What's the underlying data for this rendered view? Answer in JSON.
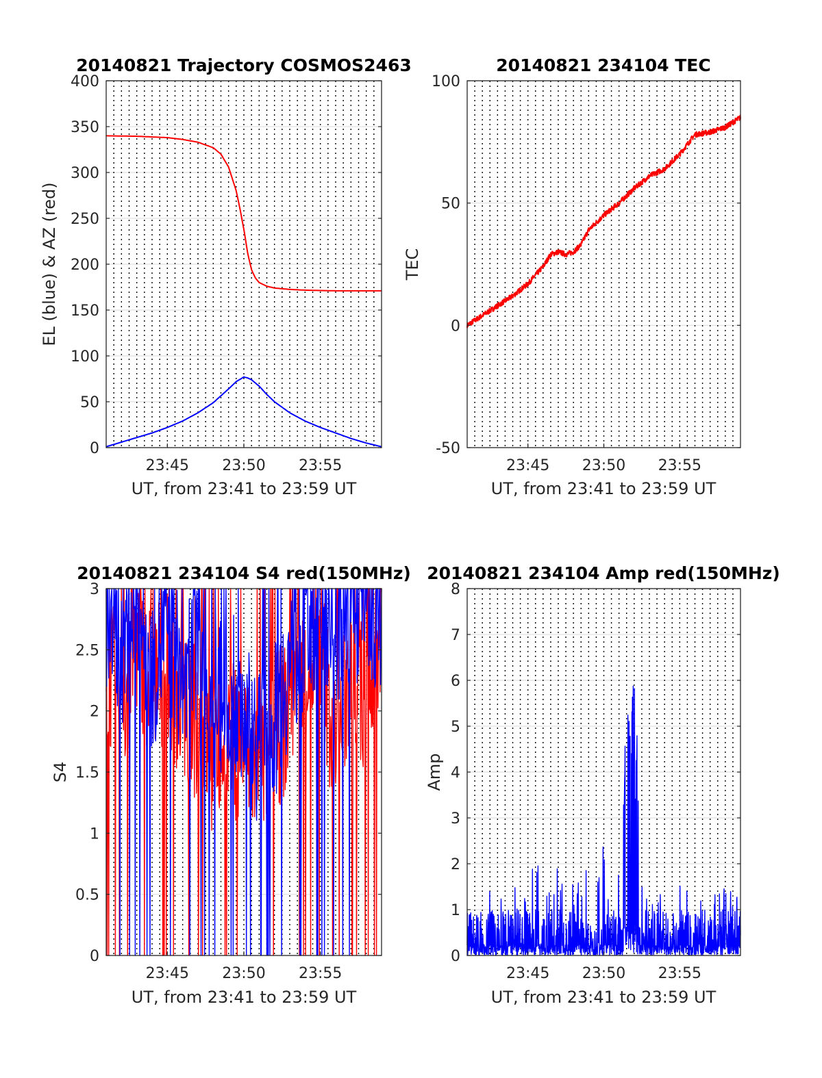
{
  "chart_data": [
    {
      "type": "line",
      "title": "20140821 Trajectory COSMOS2463",
      "xlabel": "UT, from 23:41 to 23:59 UT",
      "ylabel": "EL (blue) & AZ (red)",
      "xlim": [
        "23:41",
        "23:59"
      ],
      "xticks": [
        "23:45",
        "23:50",
        "23:55"
      ],
      "ylim": [
        0,
        400
      ],
      "yticks": [
        "0",
        "50",
        "100",
        "150",
        "200",
        "250",
        "300",
        "350",
        "400"
      ],
      "grid": "dotted vertical every 30 s, light horizontal at y ticks",
      "series": [
        {
          "name": "",
          "color": "#ff0000",
          "x": [
            "23:41",
            "23:43",
            "23:45",
            "23:46",
            "23:47",
            "23:48",
            "23:48:30",
            "23:49",
            "23:49:30",
            "23:49:45",
            "23:50",
            "23:50:15",
            "23:50:30",
            "23:50:45",
            "23:51",
            "23:51:30",
            "23:52",
            "23:53",
            "23:54",
            "23:55",
            "23:56",
            "23:57",
            "23:59"
          ],
          "values": [
            340,
            339.5,
            338,
            336,
            333,
            327,
            320,
            306,
            280,
            260,
            238,
            212,
            194,
            185,
            180,
            176,
            174,
            172.5,
            171.7,
            171.3,
            171,
            171,
            171
          ]
        },
        {
          "name": "",
          "color": "#0000ff",
          "x": [
            "23:41",
            "23:42",
            "23:43",
            "23:44",
            "23:45",
            "23:46",
            "23:47",
            "23:48",
            "23:49",
            "23:49:30",
            "23:50",
            "23:50:15",
            "23:50:30",
            "23:51",
            "23:51:30",
            "23:52",
            "23:53",
            "23:54",
            "23:55",
            "23:56",
            "23:57",
            "23:58",
            "23:59"
          ],
          "values": [
            1,
            6,
            11,
            16,
            22,
            29,
            38,
            49,
            64,
            72,
            77,
            76,
            74,
            67,
            58,
            50,
            38,
            29,
            22,
            16,
            10,
            5,
            1
          ]
        }
      ]
    },
    {
      "type": "line",
      "title": "20140821 234104 TEC",
      "xlabel": "UT, from 23:41 to 23:59 UT",
      "ylabel": "TEC",
      "xlim": [
        "23:41",
        "23:59"
      ],
      "xticks": [
        "23:45",
        "23:50",
        "23:55"
      ],
      "ylim": [
        -50,
        100
      ],
      "yticks": [
        "-50",
        "0",
        "50",
        "100"
      ],
      "series": [
        {
          "name": "",
          "color": "#ff0000",
          "x": [
            "23:41",
            "23:42",
            "23:43",
            "23:44",
            "23:45",
            "23:46",
            "23:46:30",
            "23:47",
            "23:47:30",
            "23:48",
            "23:48:30",
            "23:49",
            "23:50",
            "23:51",
            "23:52",
            "23:53",
            "23:54",
            "23:55",
            "23:56",
            "23:57",
            "23:58",
            "23:59"
          ],
          "values": [
            0,
            4,
            8,
            12,
            17,
            24,
            29,
            30,
            29,
            30,
            33,
            39,
            45,
            50,
            56,
            61,
            64,
            70,
            78,
            79,
            81,
            85
          ]
        }
      ]
    },
    {
      "type": "line",
      "title": "20140821 234104 S4 red(150MHz)",
      "xlabel": "UT, from 23:41 to 23:59 UT",
      "ylabel": "S4",
      "xlim": [
        "23:41",
        "23:59"
      ],
      "xticks": [
        "23:45",
        "23:50",
        "23:55"
      ],
      "ylim": [
        0,
        3
      ],
      "yticks": [
        "0",
        "0.5",
        "1",
        "1.5",
        "2",
        "2.5",
        "3"
      ],
      "series": [
        {
          "name": "",
          "color": "#ff0000",
          "x": [
            "23:41",
            "23:42",
            "23:43",
            "23:44",
            "23:45",
            "23:46",
            "23:47",
            "23:48",
            "23:49",
            "23:50",
            "23:51",
            "23:52",
            "23:53",
            "23:54",
            "23:55",
            "23:56",
            "23:57",
            "23:58",
            "23:59"
          ],
          "values": [
            2.4,
            2.0,
            2.6,
            2.2,
            2.4,
            2.0,
            1.9,
            1.6,
            1.8,
            1.7,
            1.5,
            1.8,
            2.0,
            2.3,
            2.6,
            1.6,
            2.4,
            2.0,
            2.6
          ]
        },
        {
          "name": "",
          "color": "#0000ff",
          "x": [
            "23:41",
            "23:42",
            "23:43",
            "23:44",
            "23:45",
            "23:46",
            "23:47",
            "23:48",
            "23:49",
            "23:50",
            "23:51",
            "23:52",
            "23:53",
            "23:54",
            "23:55",
            "23:56",
            "23:57",
            "23:58",
            "23:59"
          ],
          "values": [
            2.8,
            2.5,
            2.9,
            2.3,
            2.7,
            2.2,
            2.6,
            2.0,
            2.2,
            2.0,
            1.7,
            1.9,
            2.4,
            2.6,
            2.9,
            2.7,
            2.8,
            2.9,
            2.8
          ]
        }
      ]
    },
    {
      "type": "line",
      "title": "20140821 234104 Amp red(150MHz)",
      "xlabel": "UT, from 23:41 to 23:59 UT",
      "ylabel": "Amp",
      "xlim": [
        "23:41",
        "23:59"
      ],
      "xticks": [
        "23:45",
        "23:50",
        "23:55"
      ],
      "ylim": [
        0,
        8
      ],
      "yticks": [
        "0",
        "1",
        "2",
        "3",
        "4",
        "5",
        "6",
        "7",
        "8"
      ],
      "series": [
        {
          "name": "",
          "color": "#0000ff",
          "x": [
            "23:41",
            "23:42",
            "23:43",
            "23:44",
            "23:44:30",
            "23:45",
            "23:46",
            "23:46:30",
            "23:47",
            "23:48",
            "23:49",
            "23:50",
            "23:50:30",
            "23:51",
            "23:51:30",
            "23:52",
            "23:52:30",
            "23:53",
            "23:54",
            "23:55",
            "23:56",
            "23:57",
            "23:58",
            "23:59"
          ],
          "values": [
            1.3,
            1.7,
            1.4,
            1.6,
            1.7,
            2.3,
            2.1,
            2.0,
            2.5,
            1.6,
            2.1,
            3.0,
            1.4,
            1.8,
            5.5,
            6.5,
            1.9,
            1.8,
            1.6,
            1.7,
            1.6,
            1.4,
            1.6,
            1.5
          ]
        }
      ]
    }
  ]
}
